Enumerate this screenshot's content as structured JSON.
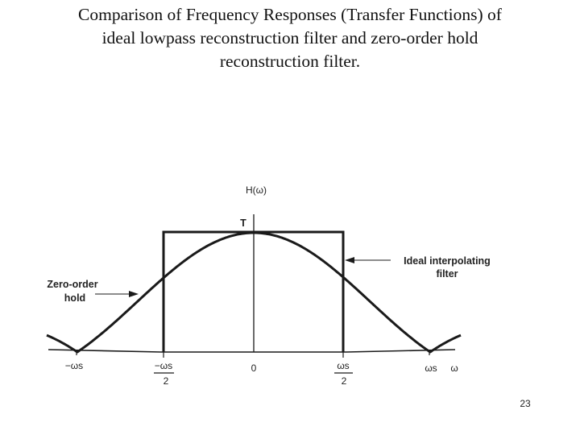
{
  "slide": {
    "title_lines": [
      "Comparison of Frequency Responses (Transfer Functions) of",
      "ideal lowpass reconstruction filter and zero-order hold",
      "reconstruction filter."
    ],
    "page_number": "23"
  },
  "figure": {
    "y_axis_label": "H(ω)",
    "peak_label": "T",
    "ideal_filter_label": [
      "Ideal interpolating",
      "filter"
    ],
    "zoh_label": [
      "Zero-order",
      "hold"
    ],
    "ticks": {
      "neg_ws": "−ωs",
      "neg_ws_half_num": "−ωs",
      "neg_ws_half_den": "2",
      "zero": "0",
      "pos_ws_half_num": "ωs",
      "pos_ws_half_den": "2",
      "pos_ws": "ωs",
      "omega": "ω"
    },
    "line_color": "#1a1a1a"
  }
}
